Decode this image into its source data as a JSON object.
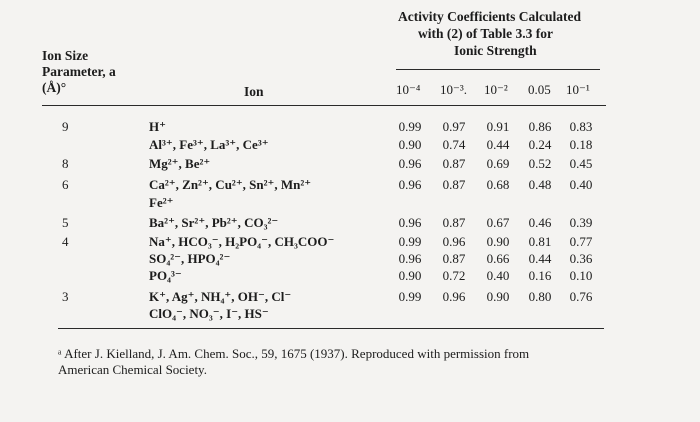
{
  "header": {
    "size_line1": "Ion Size",
    "size_line2": "Parameter, a",
    "size_line3": "(Å)°",
    "ion": "Ion",
    "activity_line1": "Activity Coefficients Calculated",
    "activity_line2": "with (2) of Table 3.3 for",
    "activity_line3": "Ionic Strength",
    "strengths": [
      "10⁻⁴",
      "10⁻³.",
      "10⁻²",
      "0.05",
      "10⁻¹"
    ]
  },
  "size_values": [
    "9",
    "8",
    "6",
    "5",
    "4",
    "3"
  ],
  "ions": [
    "H⁺",
    "Al³⁺, Fe³⁺, La³⁺, Ce³⁺",
    "Mg²⁺, Be²⁺",
    "Ca²⁺, Zn²⁺, Cu²⁺, Sn²⁺, Mn²⁺",
    "Fe²⁺",
    "Ba²⁺, Sr²⁺, Pb²⁺, CO₃²⁻",
    "Na⁺, HCO₃⁻, H₂PO₄⁻, CH₃COO⁻",
    "SO₄²⁻, HPO₄²⁻",
    "PO₄³⁻",
    "K⁺, Ag⁺, NH₄⁺, OH⁻, Cl⁻",
    "ClO₄⁻, NO₃⁻, I⁻, HS⁻"
  ],
  "coefficients": [
    [
      "0.99",
      "0.97",
      "0.91",
      "0.86",
      "0.83"
    ],
    [
      "0.90",
      "0.74",
      "0.44",
      "0.24",
      "0.18"
    ],
    [
      "0.96",
      "0.87",
      "0.69",
      "0.52",
      "0.45"
    ],
    [
      "0.96",
      "0.87",
      "0.68",
      "0.48",
      "0.40"
    ],
    [
      "0.96",
      "0.87",
      "0.67",
      "0.46",
      "0.39"
    ],
    [
      "0.99",
      "0.96",
      "0.90",
      "0.81",
      "0.77"
    ],
    [
      "0.96",
      "0.87",
      "0.66",
      "0.44",
      "0.36"
    ],
    [
      "0.90",
      "0.72",
      "0.40",
      "0.16",
      "0.10"
    ],
    [
      "0.99",
      "0.96",
      "0.90",
      "0.80",
      "0.76"
    ]
  ],
  "footnote": {
    "line1": "ᵃ After J. Kielland, J. Am. Chem. Soc., 59, 1675 (1937). Reproduced with permission from",
    "line2": "American Chemical Society."
  }
}
